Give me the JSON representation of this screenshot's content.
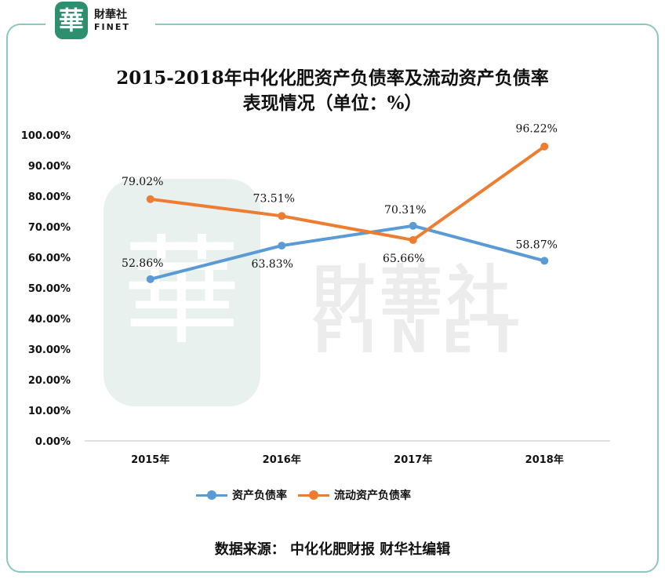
{
  "logo": {
    "seal_char": "華",
    "name_cn": "財華社",
    "name_en": "FINET"
  },
  "watermark": {
    "seal_char": "華",
    "name_cn": "財華社",
    "name_en": "FINET"
  },
  "title_line1": "2015-2018年中化化肥资产负债率及流动资产负债率",
  "title_line2": "表现情况（单位：%）",
  "source": "数据来源：  中化化肥财报    财华社编辑",
  "chart_data": {
    "type": "line",
    "categories": [
      "2015年",
      "2016年",
      "2017年",
      "2018年"
    ],
    "series": [
      {
        "name": "资产负债率",
        "color": "#5b9bd5",
        "values": [
          52.86,
          63.83,
          70.31,
          58.87
        ],
        "labels": [
          "52.86%",
          "63.83%",
          "70.31%",
          "58.87%"
        ]
      },
      {
        "name": "流动资产负债率",
        "color": "#ed7d31",
        "values": [
          79.02,
          73.51,
          65.66,
          96.22
        ],
        "labels": [
          "79.02%",
          "73.51%",
          "65.66%",
          "96.22%"
        ]
      }
    ],
    "ylim": [
      0,
      100
    ],
    "yticks": [
      "0.00%",
      "10.00%",
      "20.00%",
      "30.00%",
      "40.00%",
      "50.00%",
      "60.00%",
      "70.00%",
      "80.00%",
      "90.00%",
      "100.00%"
    ],
    "grid": false,
    "legend": "bottom"
  }
}
